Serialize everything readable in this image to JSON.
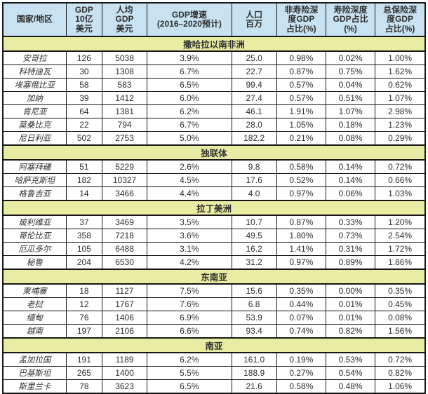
{
  "table": {
    "columns": [
      {
        "label": "国家/地区"
      },
      {
        "label": "GDP\n10亿\n美元"
      },
      {
        "label": "人均\nGDP\n美元"
      },
      {
        "label": "GDP增速\n(2016–2020预计)"
      },
      {
        "label": "人口\n百万"
      },
      {
        "label": "非寿险深\n度GDP\n占比(%)"
      },
      {
        "label": "寿险深度\nGDP占比\n(%)"
      },
      {
        "label": "总保险深\n度GDP\n占比(%)"
      }
    ],
    "sections": [
      {
        "title": "撒哈拉以南非洲",
        "rows": [
          {
            "country": "安哥拉",
            "values": [
              "126",
              "5038",
              "3.9%",
              "25.0",
              "0.98%",
              "0.02%",
              "1.00%"
            ]
          },
          {
            "country": "科特迪瓦",
            "values": [
              "30",
              "1308",
              "6.7%",
              "22.7",
              "0.87%",
              "0.75%",
              "1.62%"
            ]
          },
          {
            "country": "埃塞俄比亚",
            "values": [
              "58",
              "583",
              "6.5%",
              "99.4",
              "0.57%",
              "0.04%",
              "0.62%"
            ]
          },
          {
            "country": "加纳",
            "values": [
              "39",
              "1412",
              "6.0%",
              "27.4",
              "0.57%",
              "0.51%",
              "1.07%"
            ]
          },
          {
            "country": "肯尼亚",
            "values": [
              "64",
              "1381",
              "6.2%",
              "46.1",
              "1.91%",
              "1.07%",
              "2.98%"
            ]
          },
          {
            "country": "莫桑比克",
            "values": [
              "22",
              "794",
              "6.7%",
              "28.0",
              "1.05%",
              "0.18%",
              "1.23%"
            ]
          },
          {
            "country": "尼日利亚",
            "values": [
              "502",
              "2753",
              "5.0%",
              "182.2",
              "0.21%",
              "0.08%",
              "0.29%"
            ]
          }
        ]
      },
      {
        "title": "独联体",
        "rows": [
          {
            "country": "阿塞拜疆",
            "values": [
              "51",
              "5229",
              "2.6%",
              "9.8",
              "0.58%",
              "0.14%",
              "0.72%"
            ]
          },
          {
            "country": "哈萨克斯坦",
            "values": [
              "182",
              "10327",
              "4.5%",
              "17.6",
              "0.52%",
              "0.14%",
              "0.66%"
            ]
          },
          {
            "country": "格鲁吉亚",
            "values": [
              "14",
              "3466",
              "4.4%",
              "4.0",
              "0.97%",
              "0.06%",
              "1.03%"
            ]
          }
        ]
      },
      {
        "title": "拉丁美洲",
        "rows": [
          {
            "country": "玻利维亚",
            "values": [
              "37",
              "3469",
              "3.5%",
              "10.7",
              "0.87%",
              "0.33%",
              "1.20%"
            ]
          },
          {
            "country": "哥伦比亚",
            "values": [
              "358",
              "7218",
              "3.6%",
              "49.5",
              "1.80%",
              "0.73%",
              "2.54%"
            ]
          },
          {
            "country": "厄瓜多尔",
            "values": [
              "105",
              "6488",
              "3.1%",
              "16.2",
              "1.41%",
              "0.31%",
              "1.72%"
            ]
          },
          {
            "country": "秘鲁",
            "values": [
              "204",
              "6530",
              "4.2%",
              "31.2",
              "0.97%",
              "0.89%",
              "1.86%"
            ]
          }
        ]
      },
      {
        "title": "东南亚",
        "rows": [
          {
            "country": "柬埔寨",
            "values": [
              "18",
              "1127",
              "7.5%",
              "15.6",
              "0.35%",
              "0.00%",
              "0.35%"
            ]
          },
          {
            "country": "老挝",
            "values": [
              "12",
              "1767",
              "7.6%",
              "6.8",
              "0.44%",
              "0.01%",
              "0.45%"
            ]
          },
          {
            "country": "缅甸",
            "values": [
              "76",
              "1406",
              "6.9%",
              "53.9",
              "0.07%",
              "0.01%",
              "0.08%"
            ]
          },
          {
            "country": "越南",
            "values": [
              "197",
              "2106",
              "6.6%",
              "93.4",
              "0.74%",
              "0.82%",
              "1.56%"
            ]
          }
        ]
      },
      {
        "title": "南亚",
        "rows": [
          {
            "country": "孟加拉国",
            "values": [
              "191",
              "1189",
              "6.2%",
              "161.0",
              "0.19%",
              "0.53%",
              "0.72%"
            ]
          },
          {
            "country": "巴基斯坦",
            "values": [
              "265",
              "1400",
              "5.5%",
              "188.9",
              "0.27%",
              "0.54%",
              "0.82%"
            ]
          },
          {
            "country": "斯里兰卡",
            "values": [
              "78",
              "3623",
              "6.5%",
              "21.6",
              "0.58%",
              "0.48%",
              "1.06%"
            ]
          }
        ]
      }
    ]
  },
  "colors": {
    "header_bg": "#c9e2f1",
    "section_bg": "#e9eca3",
    "border": "#161616",
    "text": "#2e2e2e"
  }
}
